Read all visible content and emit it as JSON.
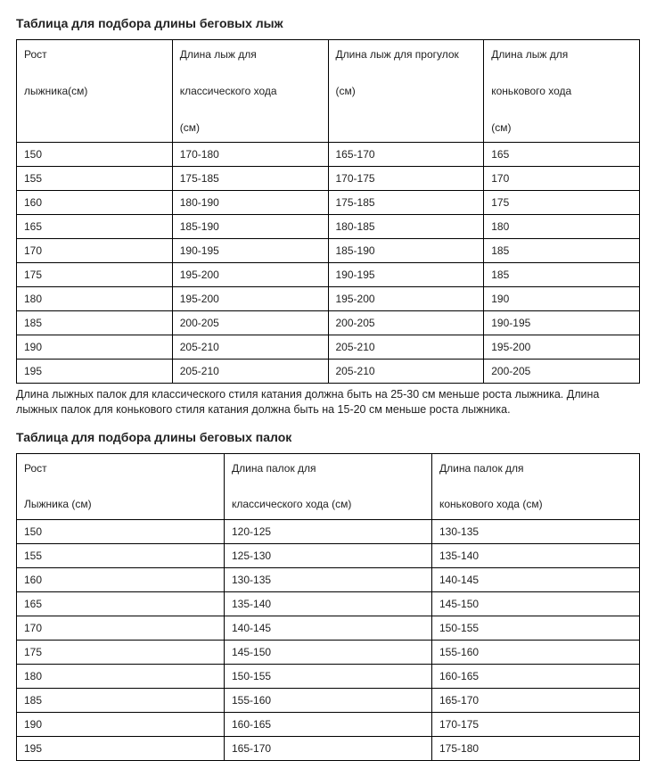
{
  "skis": {
    "title": "Таблица для подбора длины беговых лыж",
    "headers": {
      "h0a": "Рост",
      "h0b": "лыжника(см)",
      "h1a": "Длина лыж для",
      "h1b": "классического хода",
      "h1c": "(см)",
      "h2a": "Длина лыж для прогулок",
      "h2b": "(см)",
      "h3a": "Длина лыж для",
      "h3b": "конькового хода",
      "h3c": "(см)"
    },
    "rows": [
      [
        "150",
        "170-180",
        "165-170",
        "165"
      ],
      [
        "155",
        "175-185",
        "170-175",
        "170"
      ],
      [
        "160",
        "180-190",
        "175-185",
        "175"
      ],
      [
        "165",
        "185-190",
        "180-185",
        "180"
      ],
      [
        "170",
        "190-195",
        "185-190",
        "185"
      ],
      [
        "175",
        "195-200",
        "190-195",
        "185"
      ],
      [
        "180",
        "195-200",
        "195-200",
        "190"
      ],
      [
        "185",
        "200-205",
        "200-205",
        "190-195"
      ],
      [
        "190",
        "205-210",
        "205-210",
        "195-200"
      ],
      [
        "195",
        "205-210",
        "205-210",
        "200-205"
      ]
    ]
  },
  "note": "Длина лыжных палок для классического стиля катания должна быть на 25-30 см меньше роста лыжника. Длина лыжных палок для конькового стиля катания должна быть на 15-20 см меньше роста лыжника.",
  "poles": {
    "title": "Таблица для подбора длины беговых палок",
    "headers": {
      "h0a": "Рост",
      "h0b": "Лыжника (см)",
      "h1a": "Длина палок для",
      "h1b": "классического хода (см)",
      "h2a": "Длина палок для",
      "h2b": "конькового хода (см)"
    },
    "rows": [
      [
        "150",
        "120-125",
        "130-135"
      ],
      [
        "155",
        "125-130",
        "135-140"
      ],
      [
        "160",
        "130-135",
        "140-145"
      ],
      [
        "165",
        "135-140",
        "145-150"
      ],
      [
        "170",
        "140-145",
        "150-155"
      ],
      [
        "175",
        "145-150",
        "155-160"
      ],
      [
        "180",
        "150-155",
        "160-165"
      ],
      [
        "185",
        "155-160",
        "165-170"
      ],
      [
        "190",
        "160-165",
        "170-175"
      ],
      [
        "195",
        "165-170",
        "175-180"
      ]
    ]
  }
}
